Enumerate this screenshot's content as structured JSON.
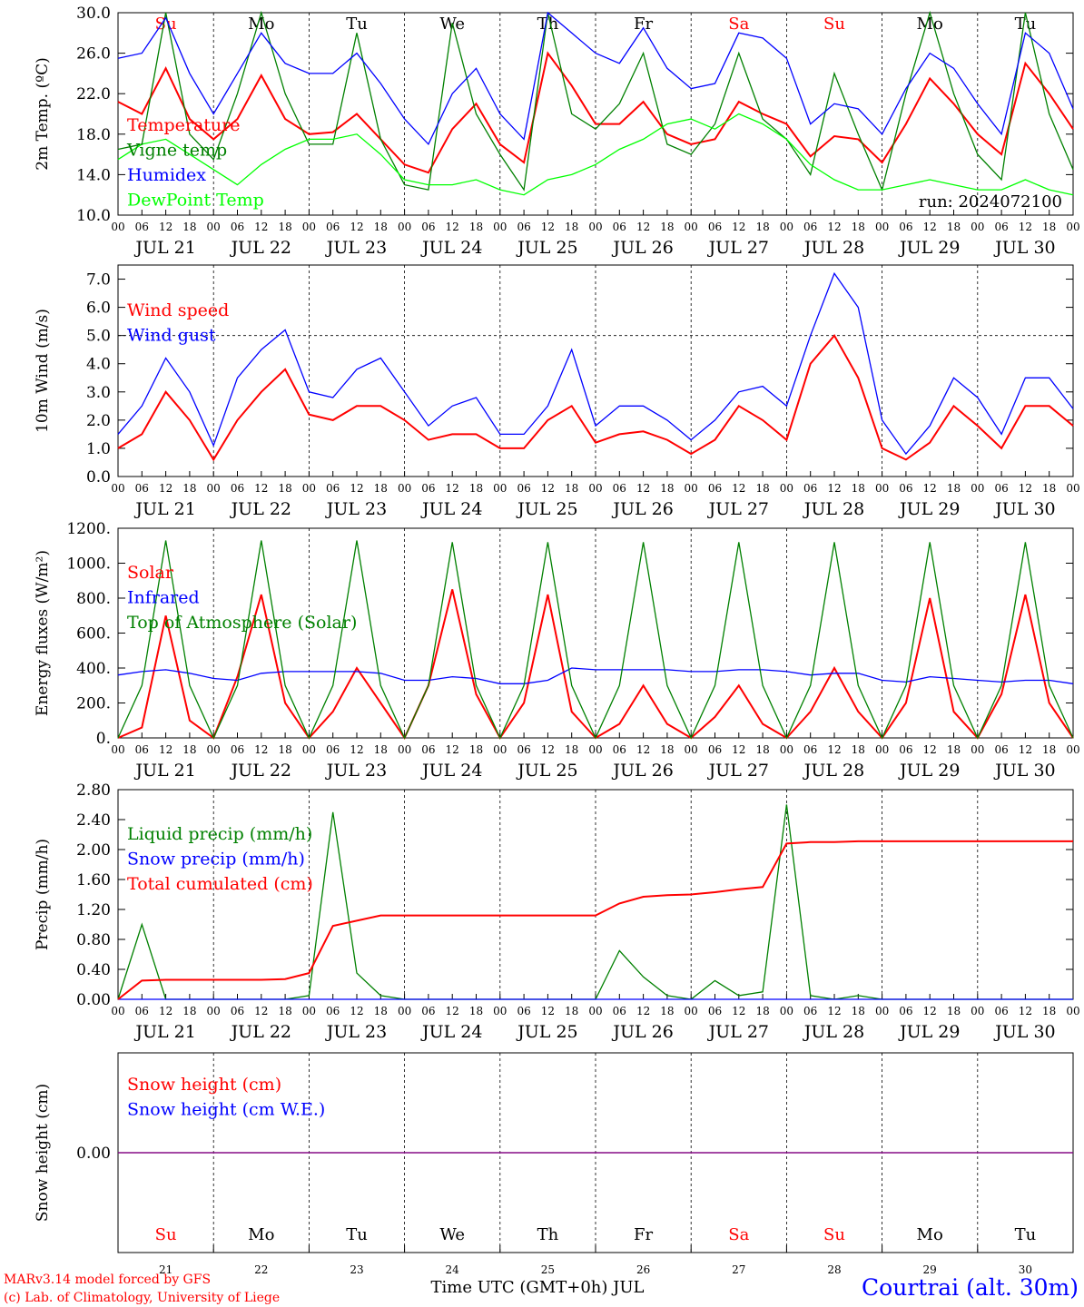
{
  "panels": [
    {
      "id": "temp",
      "ylabel": "2m Temp. (ºC)",
      "ylim": [
        10,
        30
      ],
      "ticks": [
        "10.0",
        "14.0",
        "18.0",
        "22.0",
        "26.0",
        "30.0"
      ],
      "tick_values": [
        10,
        14,
        18,
        22,
        26,
        30
      ],
      "legend": [
        {
          "label": "Temperature",
          "color": "#ff0000"
        },
        {
          "label": "Vigne temp",
          "color": "#008000"
        },
        {
          "label": "Humidex",
          "color": "#0000ff"
        },
        {
          "label": "DewPoint Temp",
          "color": "#00ff00"
        }
      ],
      "note": "run: 2024072100",
      "days_top": [
        {
          "label": "Su",
          "color": "#ff0000"
        },
        {
          "label": "Mo",
          "color": "#000000"
        },
        {
          "label": "Tu",
          "color": "#000000"
        },
        {
          "label": "We",
          "color": "#000000"
        },
        {
          "label": "Th",
          "color": "#000000"
        },
        {
          "label": "Fr",
          "color": "#000000"
        },
        {
          "label": "Sa",
          "color": "#ff0000"
        },
        {
          "label": "Su",
          "color": "#ff0000"
        },
        {
          "label": "Mo",
          "color": "#000000"
        },
        {
          "label": "Tu",
          "color": "#000000"
        }
      ]
    },
    {
      "id": "wind",
      "ylabel": "10m Wind (m/s)",
      "ylim": [
        0,
        7.5
      ],
      "ticks": [
        "0.0",
        "1.0",
        "2.0",
        "3.0",
        "4.0",
        "5.0",
        "6.0",
        "7.0"
      ],
      "tick_values": [
        0,
        1,
        2,
        3,
        4,
        5,
        6,
        7
      ],
      "legend": [
        {
          "label": "Wind speed",
          "color": "#ff0000"
        },
        {
          "label": "Wind gust",
          "color": "#0000ff"
        }
      ],
      "reference_line": 5.0
    },
    {
      "id": "energy",
      "ylabel": "Energy fluxes (W/m²)",
      "ylim": [
        0,
        1200
      ],
      "ticks": [
        "0.",
        "200.",
        "400.",
        "600.",
        "800.",
        "1000.",
        "1200."
      ],
      "tick_values": [
        0,
        200,
        400,
        600,
        800,
        1000,
        1200
      ],
      "legend": [
        {
          "label": "Solar",
          "color": "#ff0000"
        },
        {
          "label": "Infrared",
          "color": "#0000ff"
        },
        {
          "label": "Top of Atmosphere (Solar)",
          "color": "#008000"
        }
      ]
    },
    {
      "id": "precip",
      "ylabel": "Precip (mm/h)",
      "ylim": [
        0,
        2.8
      ],
      "ticks": [
        "0.00",
        "0.40",
        "0.80",
        "1.20",
        "1.60",
        "2.00",
        "2.40",
        "2.80"
      ],
      "tick_values": [
        0,
        0.4,
        0.8,
        1.2,
        1.6,
        2.0,
        2.4,
        2.8
      ],
      "legend": [
        {
          "label": "Liquid precip (mm/h)",
          "color": "#008000"
        },
        {
          "label": "Snow precip (mm/h)",
          "color": "#0000ff"
        },
        {
          "label": "Total cumulated (cm)",
          "color": "#ff0000"
        }
      ]
    },
    {
      "id": "snow",
      "ylabel": "Snow height (cm)",
      "ticks": [
        "0.00"
      ],
      "tick_values": [
        0
      ],
      "legend": [
        {
          "label": "Snow height (cm)",
          "color": "#ff0000"
        },
        {
          "label": "Snow height (cm W.E.)",
          "color": "#0000ff"
        }
      ]
    }
  ],
  "x_axis": {
    "hour_labels": [
      "00",
      "06",
      "12",
      "18"
    ],
    "final_label": "00",
    "date_labels": [
      "JUL 21",
      "JUL 22",
      "JUL 23",
      "JUL 24",
      "JUL 25",
      "JUL 26",
      "JUL 27",
      "JUL 28",
      "JUL 29",
      "JUL 30"
    ],
    "bottom_days": [
      "21",
      "22",
      "23",
      "24",
      "25",
      "26",
      "27",
      "28",
      "29",
      "30"
    ],
    "xlabel": "Time UTC (GMT+0h) JUL"
  },
  "footer": {
    "credit_line1": "MARv3.14 model forced by GFS",
    "credit_line2": "(c) Lab. of Climatology, University of Liege",
    "station": "Courtrai (alt. 30m)"
  },
  "colors": {
    "red": "#ff0000",
    "green": "#008000",
    "blue": "#0000ff",
    "lime": "#00ff00",
    "purple": "#800080"
  },
  "chart_data": [
    {
      "type": "line",
      "title": "",
      "ylabel": "2m Temp. (ºC)",
      "xlabel": "",
      "ylim": [
        10,
        30
      ],
      "x": [
        "07-21 00",
        "07-21 06",
        "07-21 12",
        "07-21 18",
        "07-22 00",
        "07-22 06",
        "07-22 12",
        "07-22 18",
        "07-23 00",
        "07-23 06",
        "07-23 12",
        "07-23 18",
        "07-24 00",
        "07-24 06",
        "07-24 12",
        "07-24 18",
        "07-25 00",
        "07-25 06",
        "07-25 12",
        "07-25 18",
        "07-26 00",
        "07-26 06",
        "07-26 12",
        "07-26 18",
        "07-27 00",
        "07-27 06",
        "07-27 12",
        "07-27 18",
        "07-28 00",
        "07-28 06",
        "07-28 12",
        "07-28 18",
        "07-29 00",
        "07-29 06",
        "07-29 12",
        "07-29 18",
        "07-30 00",
        "07-30 06",
        "07-30 12",
        "07-30 18",
        "07-31 00"
      ],
      "series": [
        {
          "name": "Temperature",
          "color": "#ff0000",
          "values": [
            21.2,
            20.0,
            24.5,
            19.5,
            17.5,
            19.5,
            23.8,
            19.5,
            18.0,
            18.2,
            20.0,
            17.5,
            15.0,
            14.2,
            18.5,
            21.0,
            17.0,
            15.2,
            26.0,
            22.8,
            19.0,
            19.0,
            21.2,
            18.0,
            17.0,
            17.5,
            21.2,
            20.0,
            19.0,
            15.8,
            17.8,
            17.5,
            15.2,
            19.0,
            23.5,
            21.0,
            18.0,
            16.0,
            25.0,
            22.0,
            18.5
          ]
        },
        {
          "name": "Vigne temp",
          "color": "#008000",
          "values": [
            16.5,
            17.0,
            30.0,
            18.0,
            15.5,
            22.0,
            30.0,
            22.0,
            17.0,
            17.0,
            28.0,
            17.5,
            13.0,
            12.5,
            29.0,
            20.0,
            16.0,
            12.5,
            30.0,
            20.0,
            18.5,
            21.0,
            26.0,
            17.0,
            16.0,
            19.0,
            26.0,
            19.5,
            17.5,
            14.0,
            24.0,
            18.0,
            12.5,
            22.0,
            30.0,
            22.0,
            16.0,
            13.5,
            30.0,
            20.0,
            14.5
          ]
        },
        {
          "name": "Humidex",
          "color": "#0000ff",
          "values": [
            25.5,
            26.0,
            29.5,
            24.0,
            20.0,
            24.0,
            28.0,
            25.0,
            24.0,
            24.0,
            26.0,
            23.0,
            19.5,
            17.0,
            22.0,
            24.5,
            20.0,
            17.5,
            30.0,
            28.0,
            26.0,
            25.0,
            28.5,
            24.5,
            22.5,
            23.0,
            28.0,
            27.5,
            25.5,
            19.0,
            21.0,
            20.5,
            18.0,
            22.5,
            26.0,
            24.5,
            21.0,
            18.0,
            28.0,
            26.0,
            20.5
          ]
        },
        {
          "name": "DewPoint Temp",
          "color": "#00ff00",
          "values": [
            15.5,
            17.0,
            17.5,
            16.0,
            14.5,
            13.0,
            15.0,
            16.5,
            17.5,
            17.5,
            18.0,
            16.0,
            13.5,
            13.0,
            13.0,
            13.5,
            12.5,
            12.0,
            13.5,
            14.0,
            15.0,
            16.5,
            17.5,
            19.0,
            19.5,
            18.5,
            20.0,
            19.0,
            17.5,
            15.0,
            13.5,
            12.5,
            12.5,
            13.0,
            13.5,
            13.0,
            12.5,
            12.5,
            13.5,
            12.5,
            12.0
          ]
        }
      ]
    },
    {
      "type": "line",
      "title": "",
      "ylabel": "10m Wind (m/s)",
      "xlabel": "",
      "ylim": [
        0,
        7.5
      ],
      "x": [
        "07-21 00",
        "07-21 06",
        "07-21 12",
        "07-21 18",
        "07-22 00",
        "07-22 06",
        "07-22 12",
        "07-22 18",
        "07-23 00",
        "07-23 06",
        "07-23 12",
        "07-23 18",
        "07-24 00",
        "07-24 06",
        "07-24 12",
        "07-24 18",
        "07-25 00",
        "07-25 06",
        "07-25 12",
        "07-25 18",
        "07-26 00",
        "07-26 06",
        "07-26 12",
        "07-26 18",
        "07-27 00",
        "07-27 06",
        "07-27 12",
        "07-27 18",
        "07-28 00",
        "07-28 06",
        "07-28 12",
        "07-28 18",
        "07-29 00",
        "07-29 06",
        "07-29 12",
        "07-29 18",
        "07-30 00",
        "07-30 06",
        "07-30 12",
        "07-30 18",
        "07-31 00"
      ],
      "series": [
        {
          "name": "Wind speed",
          "color": "#ff0000",
          "values": [
            1.0,
            1.5,
            3.0,
            2.0,
            0.6,
            2.0,
            3.0,
            3.8,
            2.2,
            2.0,
            2.5,
            2.5,
            2.0,
            1.3,
            1.5,
            1.5,
            1.0,
            1.0,
            2.0,
            2.5,
            1.2,
            1.5,
            1.6,
            1.3,
            0.8,
            1.3,
            2.5,
            2.0,
            1.3,
            4.0,
            5.0,
            3.5,
            1.0,
            0.6,
            1.2,
            2.5,
            1.8,
            1.0,
            2.5,
            2.5,
            1.8
          ]
        },
        {
          "name": "Wind gust",
          "color": "#0000ff",
          "values": [
            1.5,
            2.5,
            4.2,
            3.0,
            1.1,
            3.5,
            4.5,
            5.2,
            3.0,
            2.8,
            3.8,
            4.2,
            3.0,
            1.8,
            2.5,
            2.8,
            1.5,
            1.5,
            2.5,
            4.5,
            1.8,
            2.5,
            2.5,
            2.0,
            1.3,
            2.0,
            3.0,
            3.2,
            2.5,
            5.0,
            7.2,
            6.0,
            2.0,
            0.8,
            1.8,
            3.5,
            2.8,
            1.5,
            3.5,
            3.5,
            2.4
          ]
        }
      ]
    },
    {
      "type": "line",
      "title": "",
      "ylabel": "Energy fluxes (W/m²)",
      "xlabel": "",
      "ylim": [
        0,
        1200
      ],
      "x": [
        "07-21 00",
        "07-21 06",
        "07-21 12",
        "07-21 18",
        "07-22 00",
        "07-22 06",
        "07-22 12",
        "07-22 18",
        "07-23 00",
        "07-23 06",
        "07-23 12",
        "07-23 18",
        "07-24 00",
        "07-24 06",
        "07-24 12",
        "07-24 18",
        "07-25 00",
        "07-25 06",
        "07-25 12",
        "07-25 18",
        "07-26 00",
        "07-26 06",
        "07-26 12",
        "07-26 18",
        "07-27 00",
        "07-27 06",
        "07-27 12",
        "07-27 18",
        "07-28 00",
        "07-28 06",
        "07-28 12",
        "07-28 18",
        "07-29 00",
        "07-29 06",
        "07-29 12",
        "07-29 18",
        "07-30 00",
        "07-30 06",
        "07-30 12",
        "07-30 18",
        "07-31 00"
      ],
      "series": [
        {
          "name": "Solar",
          "color": "#ff0000",
          "values": [
            0,
            60,
            700,
            100,
            0,
            350,
            820,
            200,
            0,
            150,
            400,
            200,
            0,
            300,
            850,
            250,
            0,
            200,
            820,
            150,
            0,
            80,
            300,
            80,
            0,
            120,
            300,
            80,
            0,
            150,
            400,
            150,
            0,
            200,
            800,
            150,
            0,
            250,
            820,
            200,
            0
          ]
        },
        {
          "name": "Infrared",
          "color": "#0000ff",
          "values": [
            360,
            380,
            390,
            370,
            340,
            330,
            370,
            380,
            380,
            380,
            380,
            370,
            330,
            330,
            350,
            340,
            310,
            310,
            330,
            400,
            390,
            390,
            390,
            390,
            380,
            380,
            390,
            390,
            380,
            360,
            370,
            370,
            330,
            320,
            350,
            340,
            330,
            320,
            330,
            330,
            310
          ]
        },
        {
          "name": "Top of Atmosphere (Solar)",
          "color": "#008000",
          "values": [
            0,
            300,
            1130,
            300,
            0,
            300,
            1130,
            300,
            0,
            300,
            1130,
            300,
            0,
            300,
            1120,
            300,
            0,
            300,
            1120,
            300,
            0,
            300,
            1120,
            300,
            0,
            300,
            1120,
            300,
            0,
            300,
            1120,
            300,
            0,
            300,
            1120,
            300,
            0,
            300,
            1120,
            300,
            0
          ]
        }
      ]
    },
    {
      "type": "line",
      "title": "",
      "ylabel": "Precip (mm/h)",
      "xlabel": "",
      "ylim": [
        0,
        2.8
      ],
      "x": [
        "07-21 00",
        "07-21 06",
        "07-21 12",
        "07-21 18",
        "07-22 00",
        "07-22 06",
        "07-22 12",
        "07-22 18",
        "07-23 00",
        "07-23 06",
        "07-23 12",
        "07-23 18",
        "07-24 00",
        "07-24 06",
        "07-24 12",
        "07-24 18",
        "07-25 00",
        "07-25 06",
        "07-25 12",
        "07-25 18",
        "07-26 00",
        "07-26 06",
        "07-26 12",
        "07-26 18",
        "07-27 00",
        "07-27 06",
        "07-27 12",
        "07-27 18",
        "07-28 00",
        "07-28 06",
        "07-28 12",
        "07-28 18",
        "07-29 00",
        "07-29 06",
        "07-29 12",
        "07-29 18",
        "07-30 00",
        "07-30 06",
        "07-30 12",
        "07-30 18",
        "07-31 00"
      ],
      "series": [
        {
          "name": "Liquid precip (mm/h)",
          "color": "#008000",
          "values": [
            0.0,
            1.0,
            0.0,
            0.0,
            0.0,
            0.0,
            0.0,
            0.0,
            0.05,
            2.5,
            0.35,
            0.05,
            0.0,
            0.0,
            0.0,
            0.0,
            0.0,
            0.0,
            0.0,
            0.0,
            0.0,
            0.65,
            0.3,
            0.05,
            0.0,
            0.25,
            0.05,
            0.1,
            2.6,
            0.05,
            0.0,
            0.05,
            0.0,
            0.0,
            0.0,
            0.0,
            0.0,
            0.0,
            0.0,
            0.0,
            0.0
          ]
        },
        {
          "name": "Snow precip (mm/h)",
          "color": "#0000ff",
          "values": [
            0,
            0,
            0,
            0,
            0,
            0,
            0,
            0,
            0,
            0,
            0,
            0,
            0,
            0,
            0,
            0,
            0,
            0,
            0,
            0,
            0,
            0,
            0,
            0,
            0,
            0,
            0,
            0,
            0,
            0,
            0,
            0,
            0,
            0,
            0,
            0,
            0,
            0,
            0,
            0,
            0
          ]
        },
        {
          "name": "Total cumulated (cm)",
          "color": "#ff0000",
          "values": [
            0.0,
            0.25,
            0.26,
            0.26,
            0.26,
            0.26,
            0.26,
            0.27,
            0.35,
            0.98,
            1.05,
            1.12,
            1.12,
            1.12,
            1.12,
            1.12,
            1.12,
            1.12,
            1.12,
            1.12,
            1.12,
            1.28,
            1.37,
            1.39,
            1.4,
            1.43,
            1.47,
            1.5,
            2.08,
            2.1,
            2.1,
            2.11,
            2.11,
            2.11,
            2.11,
            2.11,
            2.11,
            2.11,
            2.11,
            2.11,
            2.11
          ]
        }
      ]
    },
    {
      "type": "line",
      "title": "",
      "ylabel": "Snow height (cm)",
      "xlabel": "Time UTC (GMT+0h) JUL",
      "x": [
        "07-21 00",
        "07-31 00"
      ],
      "series": [
        {
          "name": "Snow height (cm)",
          "color": "#ff0000",
          "values": [
            0.0,
            0.0
          ]
        },
        {
          "name": "Snow height (cm W.E.)",
          "color": "#0000ff",
          "values": [
            0.0,
            0.0
          ]
        }
      ]
    }
  ]
}
